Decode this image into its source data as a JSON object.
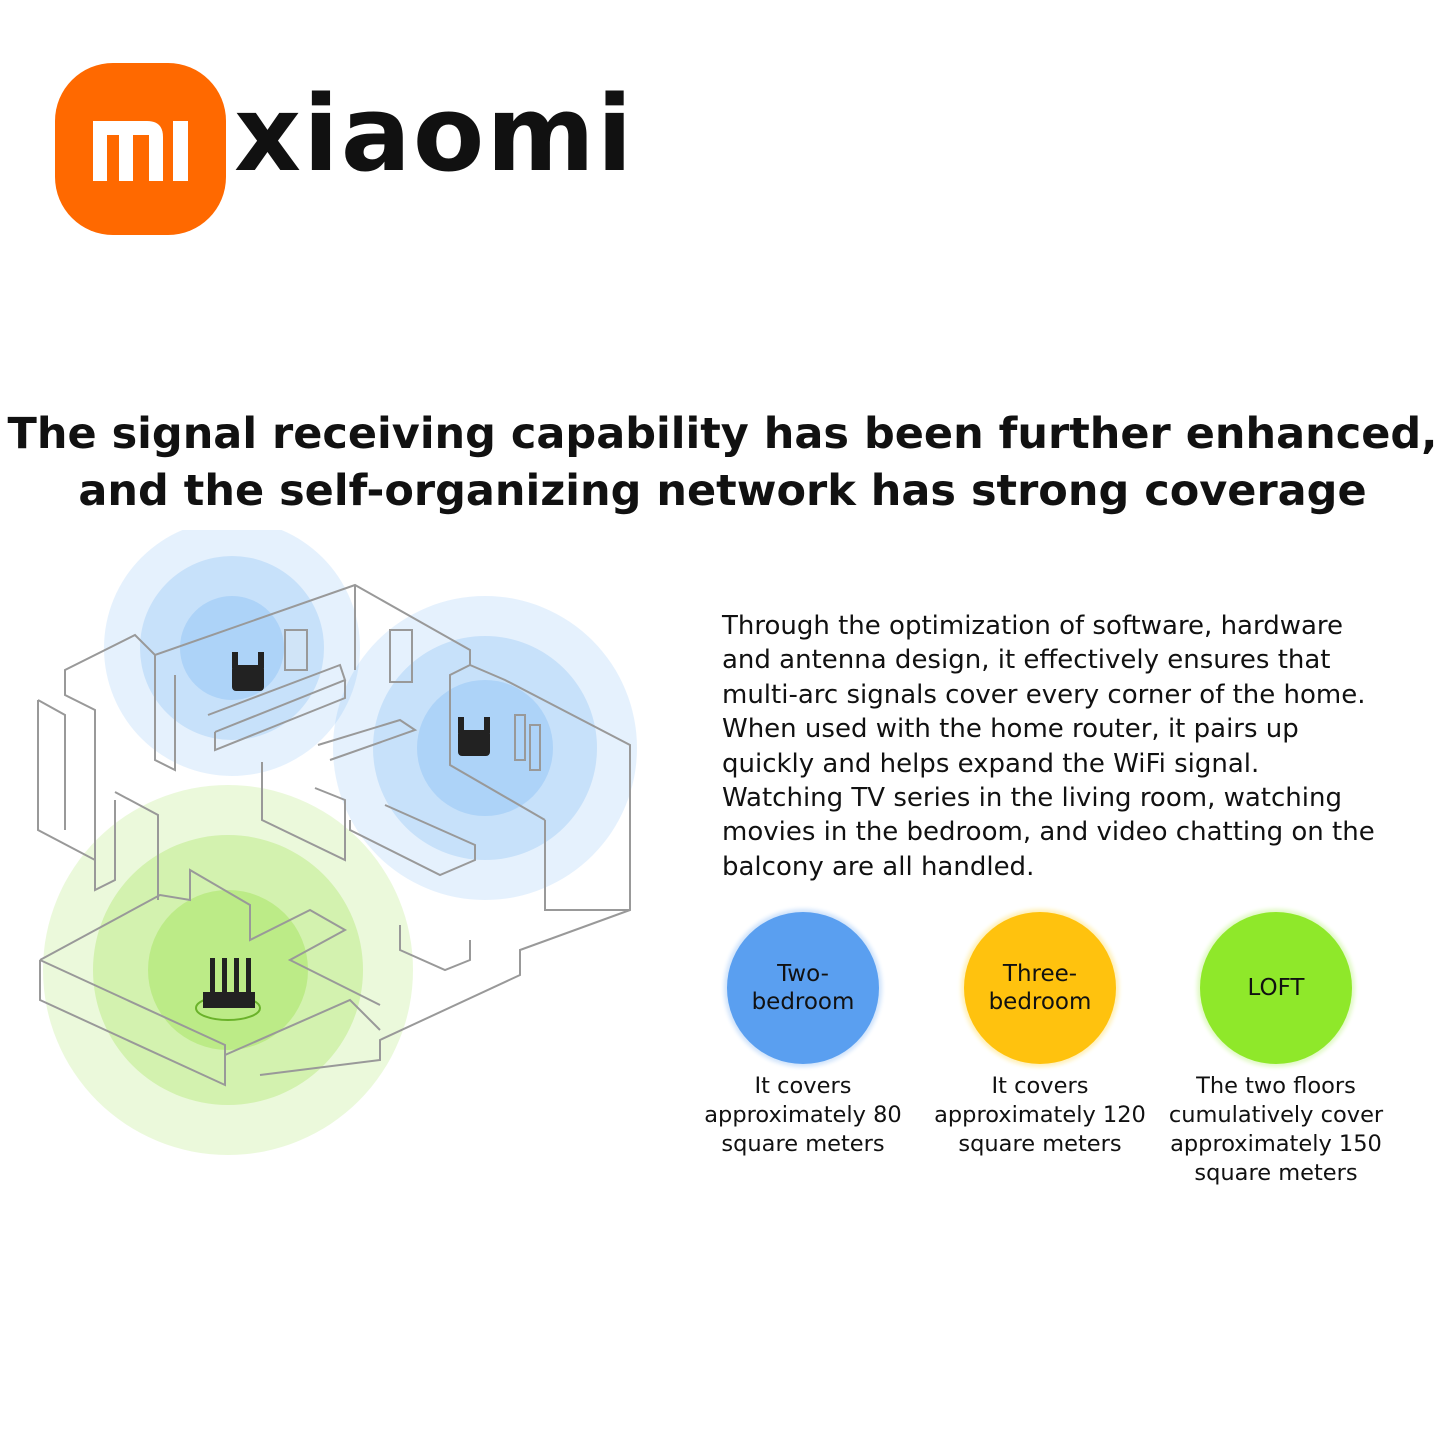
{
  "brand": {
    "logo_mark": "mi",
    "wordmark": "xiaomi",
    "logo_color": "#ff6900"
  },
  "headline": {
    "line1": "The signal receiving capability has been further enhanced,",
    "line2": "and the self-organizing network has strong coverage"
  },
  "description": {
    "lines": [
      "Through the optimization of software, hardware",
      "and antenna design, it effectively ensures that",
      "multi-arc signals cover every corner of the home.",
      "When used with the home router, it pairs up",
      "quickly and helps expand the WiFi signal.",
      "Watching TV series in the living room, watching",
      "movies in the bedroom, and video chatting on the",
      "balcony are all handled."
    ]
  },
  "coverage": [
    {
      "label_lines": [
        "Two-",
        "bedroom"
      ],
      "color": "#5a9ff0",
      "caption_lines": [
        "It covers",
        "approximately 80",
        "square meters"
      ]
    },
    {
      "label_lines": [
        "Three-",
        "bedroom"
      ],
      "color": "#ffc20e",
      "caption_lines": [
        "It covers",
        "approximately 120",
        "square meters"
      ]
    },
    {
      "label_lines": [
        "LOFT"
      ],
      "color": "#8fe82a",
      "caption_lines": [
        "The two floors",
        "cumulatively cover",
        "approximately 150",
        "square meters"
      ]
    }
  ],
  "illustration": {
    "repeater_signal_color": "#6fb3f5",
    "router_signal_color": "#9be04a"
  }
}
